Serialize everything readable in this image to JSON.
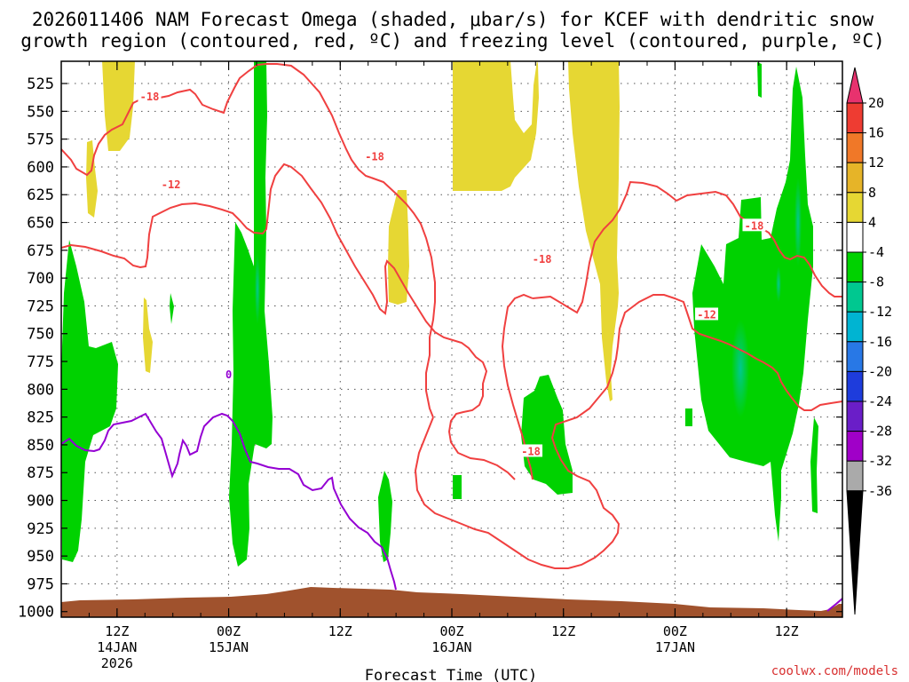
{
  "chart_data": {
    "type": "time-height cross section",
    "title_line1": "2026011406 NAM Forecast Omega (shaded, μbar/s) for KCEF with dendritic snow",
    "title_line2": "growth region (contoured, red, ºC) and freezing level (contoured, purple, ºC)",
    "xlabel": "Forecast Time (UTC)",
    "y_axis_unit": "hPa",
    "y_ticks": [
      525,
      550,
      575,
      600,
      625,
      650,
      675,
      700,
      725,
      750,
      775,
      800,
      825,
      850,
      875,
      900,
      925,
      950,
      975,
      1000
    ],
    "ylim": [
      505,
      1005
    ],
    "x_range_hours": [
      0,
      84
    ],
    "x_ticks": [
      {
        "h": 6,
        "l1": "12Z",
        "l2": "14JAN",
        "l3": "2026"
      },
      {
        "h": 18,
        "l1": "00Z",
        "l2": "15JAN",
        "l3": ""
      },
      {
        "h": 30,
        "l1": "12Z",
        "l2": "",
        "l3": ""
      },
      {
        "h": 42,
        "l1": "00Z",
        "l2": "16JAN",
        "l3": ""
      },
      {
        "h": 54,
        "l1": "12Z",
        "l2": "",
        "l3": ""
      },
      {
        "h": 66,
        "l1": "00Z",
        "l2": "17JAN",
        "l3": ""
      },
      {
        "h": 78,
        "l1": "12Z",
        "l2": "",
        "l3": ""
      }
    ],
    "colorbar": {
      "labels": [
        "20",
        "16",
        "12",
        "8",
        "4",
        "-4",
        "-8",
        "-12",
        "-16",
        "-20",
        "-24",
        "-28",
        "-32",
        "-36"
      ],
      "colors": [
        "#e8326e",
        "#ee3c32",
        "#f07828",
        "#e6b428",
        "#e6d733",
        "#ffffff",
        "#00d200",
        "#00c890",
        "#00b4d2",
        "#2878e6",
        "#1e3cdc",
        "#6a1ec8",
        "#a000c8",
        "#aaaaaa",
        "#000000"
      ]
    },
    "colors": {
      "snow_growth": "#f04040",
      "freezing": "#9400d3",
      "terrain": "#a0522d",
      "omega_green": "#00d200",
      "omega_teal": "#00c890",
      "omega_yellow": "#e6d733"
    },
    "dgz_contour_labels": [
      {
        "text": "-18",
        "h": 9.5,
        "p": 537
      },
      {
        "text": "-12",
        "h": 11.8,
        "p": 616
      },
      {
        "text": "-18",
        "h": 33.7,
        "p": 591
      },
      {
        "text": "-18",
        "h": 51.7,
        "p": 683
      },
      {
        "text": "-18",
        "h": 50.5,
        "p": 856
      },
      {
        "text": "-12",
        "h": 69.4,
        "p": 733
      },
      {
        "text": "-18",
        "h": 74.5,
        "p": 653
      }
    ],
    "freezing_contour_labels": [
      {
        "text": "0",
        "h": 18,
        "p": 787
      }
    ],
    "credit": "coolwx.com/models"
  }
}
